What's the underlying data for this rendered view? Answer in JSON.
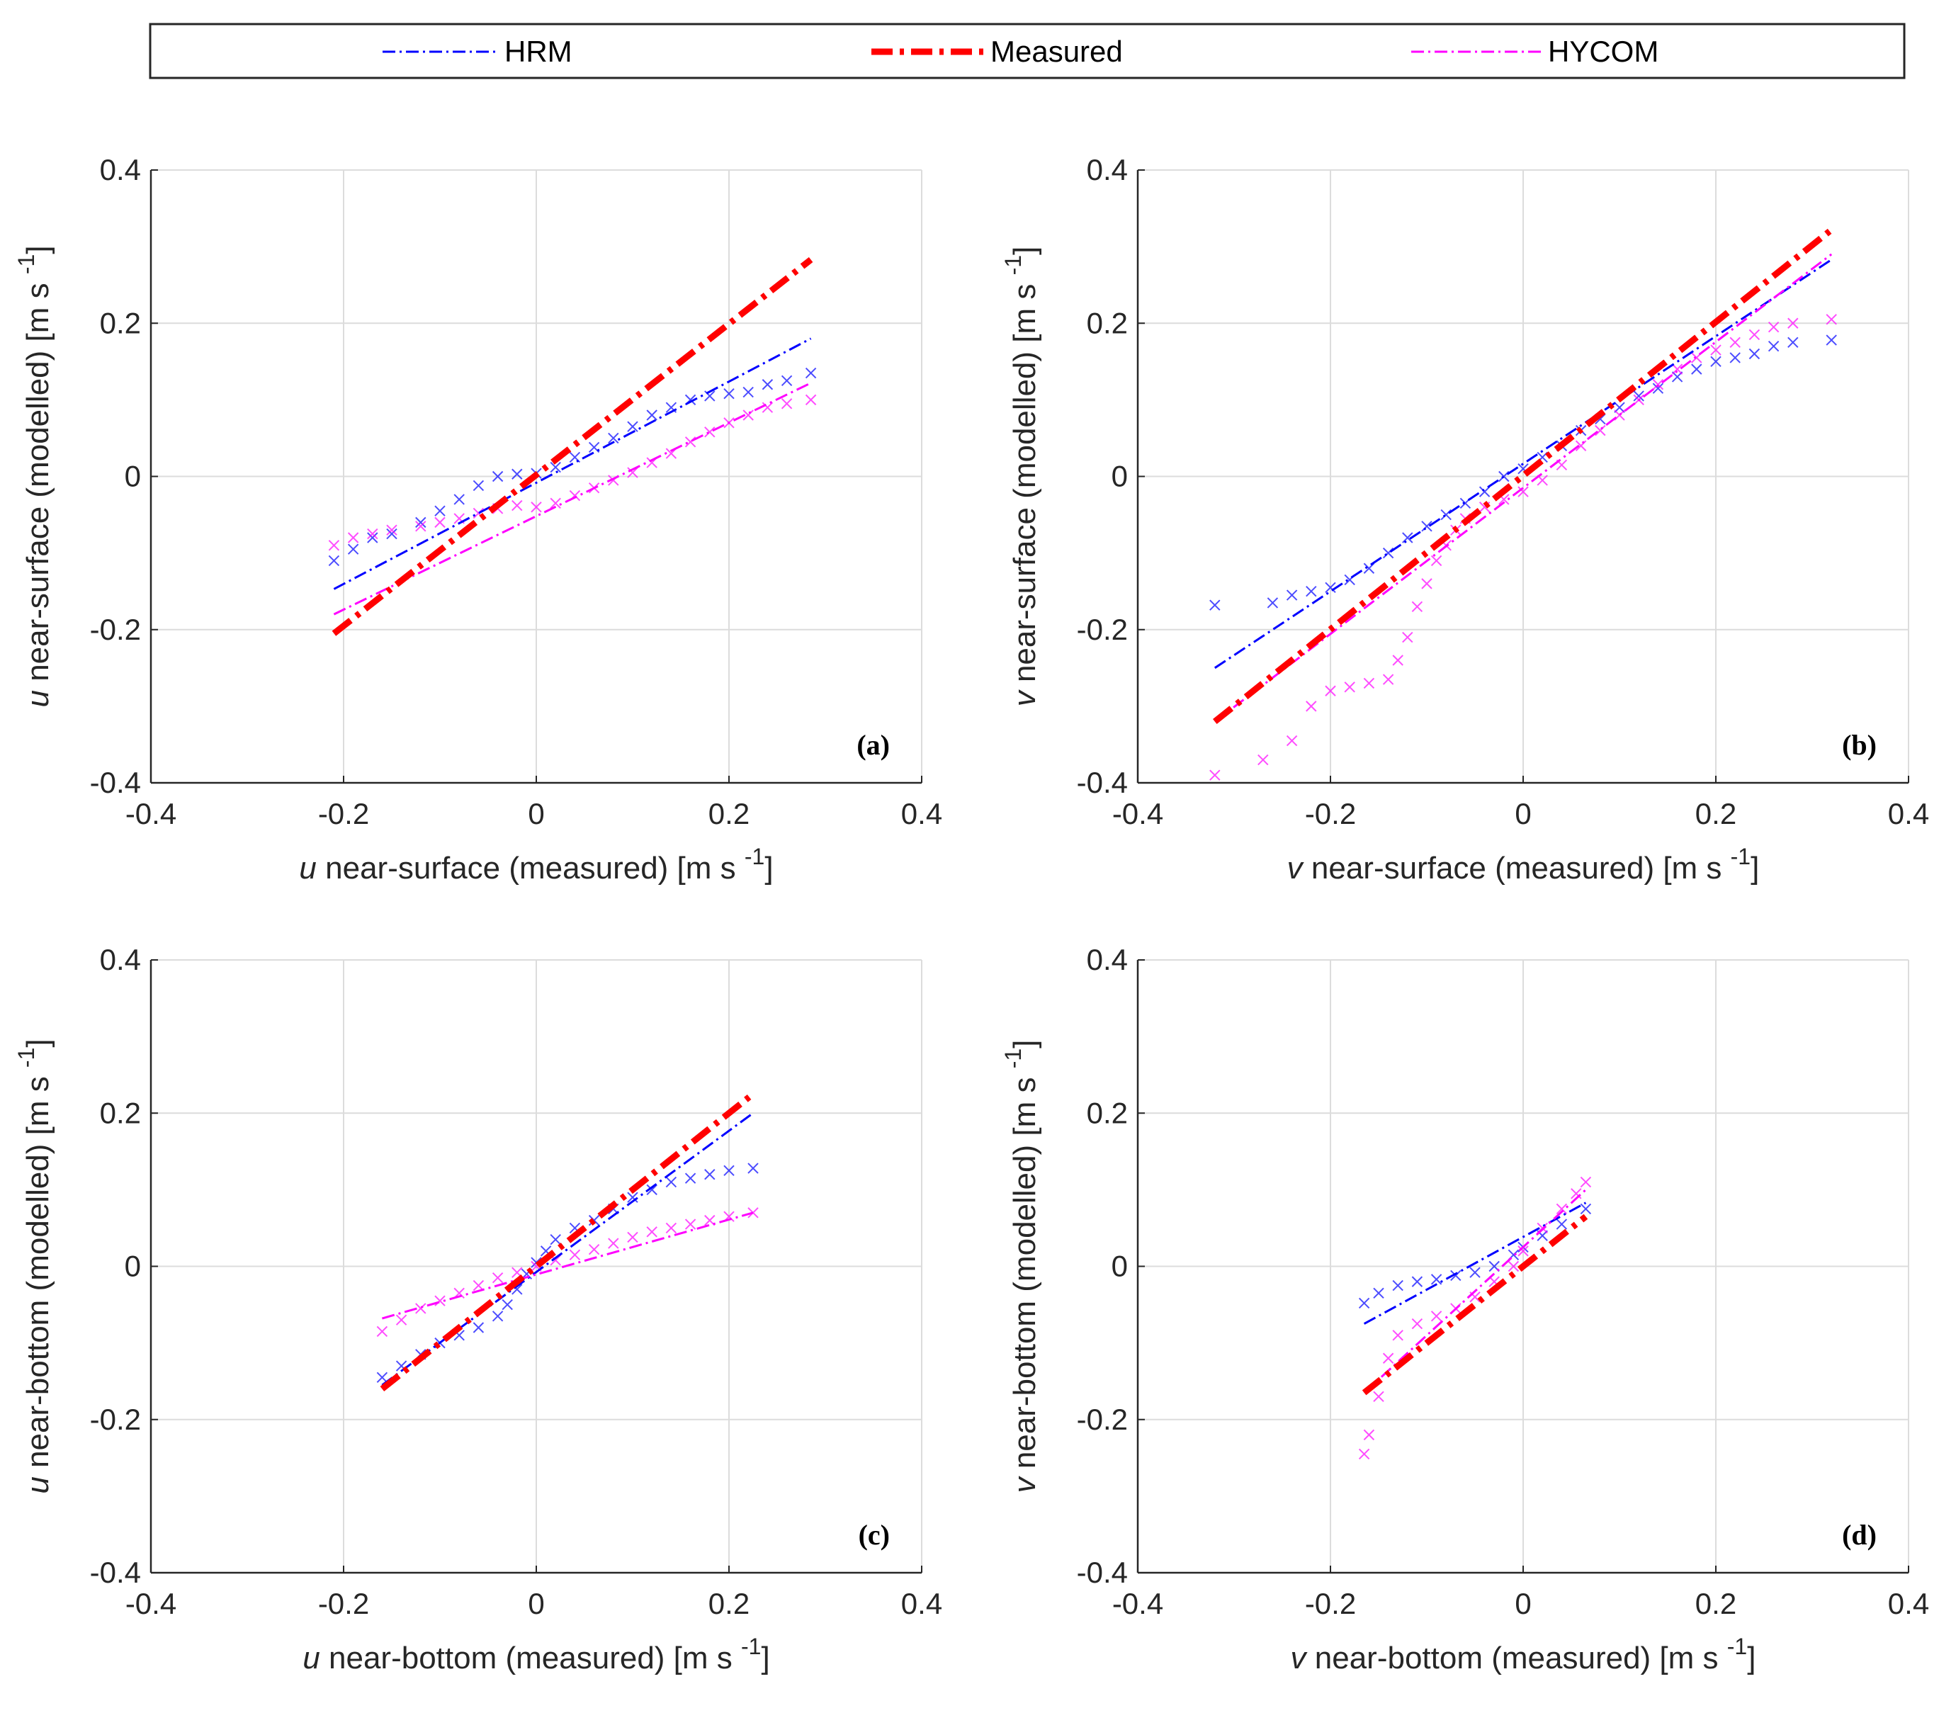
{
  "legend": {
    "entries": [
      {
        "name": "HRM",
        "color": "#0000ff",
        "style": "dash-dot thin"
      },
      {
        "name": "Measured",
        "color": "#ff0000",
        "style": "dash-dot thick"
      },
      {
        "name": "HYCOM",
        "color": "#ff00ff",
        "style": "dash-dot thin"
      }
    ]
  },
  "chart_data": [
    {
      "type": "scatter",
      "panel": "(a)",
      "xlabel": {
        "var": "u",
        "text": " near-surface (measured) [m s ",
        "exp": "-1",
        "close": "]"
      },
      "ylabel": {
        "var": "u",
        "text": " near-surface (modelled) [m s ",
        "exp": "-1",
        "close": "]"
      },
      "xlim": [
        -0.4,
        0.4
      ],
      "ylim": [
        -0.4,
        0.4
      ],
      "xticks": [
        "-0.4",
        "-0.2",
        "0",
        "0.2",
        "0.4"
      ],
      "yticks": [
        "-0.4",
        "-0.2",
        "0",
        "0.2",
        "0.4"
      ],
      "grid": true,
      "lines": {
        "HRM": [
          [
            -0.21,
            -0.147
          ],
          [
            0.285,
            0.18
          ]
        ],
        "Measured": [
          [
            -0.21,
            -0.205
          ],
          [
            0.285,
            0.283
          ]
        ],
        "HYCOM": [
          [
            -0.21,
            -0.18
          ],
          [
            0.285,
            0.122
          ]
        ]
      },
      "scatter": {
        "HRM": [
          [
            -0.21,
            -0.11
          ],
          [
            -0.19,
            -0.095
          ],
          [
            -0.17,
            -0.08
          ],
          [
            -0.15,
            -0.075
          ],
          [
            -0.12,
            -0.06
          ],
          [
            -0.1,
            -0.045
          ],
          [
            -0.08,
            -0.03
          ],
          [
            -0.06,
            -0.012
          ],
          [
            -0.04,
            0.0
          ],
          [
            -0.02,
            0.003
          ],
          [
            0.0,
            0.004
          ],
          [
            0.02,
            0.012
          ],
          [
            0.04,
            0.025
          ],
          [
            0.06,
            0.038
          ],
          [
            0.08,
            0.05
          ],
          [
            0.1,
            0.065
          ],
          [
            0.12,
            0.08
          ],
          [
            0.14,
            0.09
          ],
          [
            0.16,
            0.1
          ],
          [
            0.18,
            0.105
          ],
          [
            0.2,
            0.108
          ],
          [
            0.22,
            0.11
          ],
          [
            0.24,
            0.12
          ],
          [
            0.26,
            0.125
          ],
          [
            0.285,
            0.135
          ]
        ],
        "HYCOM": [
          [
            -0.21,
            -0.09
          ],
          [
            -0.19,
            -0.08
          ],
          [
            -0.17,
            -0.075
          ],
          [
            -0.15,
            -0.07
          ],
          [
            -0.12,
            -0.065
          ],
          [
            -0.1,
            -0.06
          ],
          [
            -0.08,
            -0.055
          ],
          [
            -0.06,
            -0.048
          ],
          [
            -0.04,
            -0.042
          ],
          [
            -0.02,
            -0.038
          ],
          [
            0.0,
            -0.04
          ],
          [
            0.02,
            -0.035
          ],
          [
            0.04,
            -0.025
          ],
          [
            0.06,
            -0.015
          ],
          [
            0.08,
            -0.005
          ],
          [
            0.1,
            0.005
          ],
          [
            0.12,
            0.018
          ],
          [
            0.14,
            0.03
          ],
          [
            0.16,
            0.045
          ],
          [
            0.18,
            0.058
          ],
          [
            0.2,
            0.07
          ],
          [
            0.22,
            0.08
          ],
          [
            0.24,
            0.09
          ],
          [
            0.26,
            0.095
          ],
          [
            0.285,
            0.1
          ]
        ]
      }
    },
    {
      "type": "scatter",
      "panel": "(b)",
      "xlabel": {
        "var": "v",
        "text": " near-surface (measured) [m s ",
        "exp": "-1",
        "close": "]"
      },
      "ylabel": {
        "var": "v",
        "text": " near-surface (modelled) [m s ",
        "exp": "-1",
        "close": "]"
      },
      "xlim": [
        -0.4,
        0.4
      ],
      "ylim": [
        -0.4,
        0.4
      ],
      "xticks": [
        "-0.4",
        "-0.2",
        "0",
        "0.2",
        "0.4"
      ],
      "yticks": [
        "-0.4",
        "-0.2",
        "0",
        "0.2",
        "0.4"
      ],
      "grid": true,
      "lines": {
        "HRM": [
          [
            -0.32,
            -0.25
          ],
          [
            0.32,
            0.283
          ]
        ],
        "Measured": [
          [
            -0.32,
            -0.32
          ],
          [
            0.32,
            0.322
          ]
        ],
        "HYCOM": [
          [
            -0.32,
            -0.32
          ],
          [
            0.32,
            0.29
          ]
        ]
      },
      "scatter": {
        "HRM": [
          [
            -0.32,
            -0.168
          ],
          [
            -0.26,
            -0.165
          ],
          [
            -0.24,
            -0.155
          ],
          [
            -0.22,
            -0.15
          ],
          [
            -0.2,
            -0.145
          ],
          [
            -0.18,
            -0.135
          ],
          [
            -0.16,
            -0.12
          ],
          [
            -0.14,
            -0.1
          ],
          [
            -0.12,
            -0.08
          ],
          [
            -0.1,
            -0.065
          ],
          [
            -0.08,
            -0.05
          ],
          [
            -0.06,
            -0.035
          ],
          [
            -0.04,
            -0.02
          ],
          [
            -0.02,
            0.0
          ],
          [
            0.0,
            0.01
          ],
          [
            0.02,
            0.025
          ],
          [
            0.04,
            0.04
          ],
          [
            0.06,
            0.06
          ],
          [
            0.08,
            0.075
          ],
          [
            0.1,
            0.09
          ],
          [
            0.12,
            0.105
          ],
          [
            0.14,
            0.115
          ],
          [
            0.16,
            0.13
          ],
          [
            0.18,
            0.14
          ],
          [
            0.2,
            0.15
          ],
          [
            0.22,
            0.155
          ],
          [
            0.24,
            0.16
          ],
          [
            0.26,
            0.17
          ],
          [
            0.28,
            0.175
          ],
          [
            0.32,
            0.178
          ]
        ],
        "HYCOM": [
          [
            -0.32,
            -0.39
          ],
          [
            -0.27,
            -0.37
          ],
          [
            -0.24,
            -0.345
          ],
          [
            -0.22,
            -0.3
          ],
          [
            -0.2,
            -0.28
          ],
          [
            -0.18,
            -0.275
          ],
          [
            -0.16,
            -0.27
          ],
          [
            -0.14,
            -0.265
          ],
          [
            -0.13,
            -0.24
          ],
          [
            -0.12,
            -0.21
          ],
          [
            -0.11,
            -0.17
          ],
          [
            -0.1,
            -0.14
          ],
          [
            -0.09,
            -0.11
          ],
          [
            -0.08,
            -0.09
          ],
          [
            -0.07,
            -0.07
          ],
          [
            -0.06,
            -0.055
          ],
          [
            -0.04,
            -0.04
          ],
          [
            -0.02,
            -0.03
          ],
          [
            0.0,
            -0.02
          ],
          [
            0.02,
            -0.005
          ],
          [
            0.04,
            0.015
          ],
          [
            0.06,
            0.04
          ],
          [
            0.08,
            0.06
          ],
          [
            0.1,
            0.08
          ],
          [
            0.12,
            0.1
          ],
          [
            0.14,
            0.12
          ],
          [
            0.16,
            0.14
          ],
          [
            0.18,
            0.155
          ],
          [
            0.2,
            0.165
          ],
          [
            0.22,
            0.175
          ],
          [
            0.24,
            0.185
          ],
          [
            0.26,
            0.195
          ],
          [
            0.28,
            0.2
          ],
          [
            0.32,
            0.205
          ]
        ]
      }
    },
    {
      "type": "scatter",
      "panel": "(c)",
      "xlabel": {
        "var": "u",
        "text": " near-bottom (measured) [m s ",
        "exp": "-1",
        "close": "]"
      },
      "ylabel": {
        "var": "u",
        "text": " near-bottom (modelled) [m s ",
        "exp": "-1",
        "close": "]"
      },
      "xlim": [
        -0.4,
        0.4
      ],
      "ylim": [
        -0.4,
        0.4
      ],
      "xticks": [
        "-0.4",
        "-0.2",
        "0",
        "0.2",
        "0.4"
      ],
      "yticks": [
        "-0.4",
        "-0.2",
        "0",
        "0.2",
        "0.4"
      ],
      "grid": true,
      "lines": {
        "HRM": [
          [
            -0.16,
            -0.155
          ],
          [
            0.225,
            0.2
          ]
        ],
        "Measured": [
          [
            -0.16,
            -0.16
          ],
          [
            0.225,
            0.225
          ]
        ],
        "HYCOM": [
          [
            -0.16,
            -0.068
          ],
          [
            0.225,
            0.07
          ]
        ]
      },
      "scatter": {
        "HRM": [
          [
            -0.16,
            -0.145
          ],
          [
            -0.14,
            -0.13
          ],
          [
            -0.12,
            -0.115
          ],
          [
            -0.1,
            -0.1
          ],
          [
            -0.08,
            -0.09
          ],
          [
            -0.06,
            -0.08
          ],
          [
            -0.04,
            -0.065
          ],
          [
            -0.03,
            -0.05
          ],
          [
            -0.02,
            -0.03
          ],
          [
            -0.01,
            -0.01
          ],
          [
            0.0,
            0.005
          ],
          [
            0.01,
            0.02
          ],
          [
            0.02,
            0.035
          ],
          [
            0.04,
            0.05
          ],
          [
            0.06,
            0.06
          ],
          [
            0.08,
            0.075
          ],
          [
            0.1,
            0.09
          ],
          [
            0.12,
            0.1
          ],
          [
            0.14,
            0.11
          ],
          [
            0.16,
            0.115
          ],
          [
            0.18,
            0.12
          ],
          [
            0.2,
            0.125
          ],
          [
            0.225,
            0.128
          ]
        ],
        "HYCOM": [
          [
            -0.16,
            -0.085
          ],
          [
            -0.14,
            -0.07
          ],
          [
            -0.12,
            -0.055
          ],
          [
            -0.1,
            -0.045
          ],
          [
            -0.08,
            -0.035
          ],
          [
            -0.06,
            -0.025
          ],
          [
            -0.04,
            -0.015
          ],
          [
            -0.02,
            -0.008
          ],
          [
            0.0,
            0.0
          ],
          [
            0.02,
            0.008
          ],
          [
            0.04,
            0.015
          ],
          [
            0.06,
            0.022
          ],
          [
            0.08,
            0.03
          ],
          [
            0.1,
            0.038
          ],
          [
            0.12,
            0.045
          ],
          [
            0.14,
            0.05
          ],
          [
            0.16,
            0.055
          ],
          [
            0.18,
            0.06
          ],
          [
            0.2,
            0.065
          ],
          [
            0.225,
            0.07
          ]
        ]
      }
    },
    {
      "type": "scatter",
      "panel": "(d)",
      "xlabel": {
        "var": "v",
        "text": " near-bottom (measured) [m s ",
        "exp": "-1",
        "close": "]"
      },
      "ylabel": {
        "var": "v",
        "text": " near-bottom (modelled) [m s ",
        "exp": "-1",
        "close": "]"
      },
      "xlim": [
        -0.4,
        0.4
      ],
      "ylim": [
        -0.4,
        0.4
      ],
      "xticks": [
        "-0.4",
        "-0.2",
        "0",
        "0.2",
        "0.4"
      ],
      "yticks": [
        "-0.4",
        "-0.2",
        "0",
        "0.2",
        "0.4"
      ],
      "grid": true,
      "lines": {
        "HRM": [
          [
            -0.165,
            -0.075
          ],
          [
            0.065,
            0.083
          ]
        ],
        "Measured": [
          [
            -0.165,
            -0.165
          ],
          [
            0.065,
            0.065
          ]
        ],
        "HYCOM": [
          [
            -0.165,
            -0.165
          ],
          [
            0.065,
            0.1
          ]
        ]
      },
      "scatter": {
        "HRM": [
          [
            -0.165,
            -0.048
          ],
          [
            -0.15,
            -0.035
          ],
          [
            -0.13,
            -0.025
          ],
          [
            -0.11,
            -0.02
          ],
          [
            -0.09,
            -0.017
          ],
          [
            -0.07,
            -0.012
          ],
          [
            -0.05,
            -0.008
          ],
          [
            -0.03,
            0.0
          ],
          [
            -0.01,
            0.015
          ],
          [
            0.0,
            0.025
          ],
          [
            0.02,
            0.04
          ],
          [
            0.04,
            0.055
          ],
          [
            0.065,
            0.075
          ]
        ],
        "HYCOM": [
          [
            -0.165,
            -0.245
          ],
          [
            -0.16,
            -0.22
          ],
          [
            -0.15,
            -0.17
          ],
          [
            -0.14,
            -0.12
          ],
          [
            -0.13,
            -0.09
          ],
          [
            -0.11,
            -0.075
          ],
          [
            -0.09,
            -0.065
          ],
          [
            -0.07,
            -0.055
          ],
          [
            -0.05,
            -0.04
          ],
          [
            -0.03,
            -0.02
          ],
          [
            -0.01,
            0.0
          ],
          [
            0.0,
            0.02
          ],
          [
            0.02,
            0.05
          ],
          [
            0.04,
            0.075
          ],
          [
            0.055,
            0.095
          ],
          [
            0.065,
            0.11
          ]
        ]
      }
    }
  ]
}
